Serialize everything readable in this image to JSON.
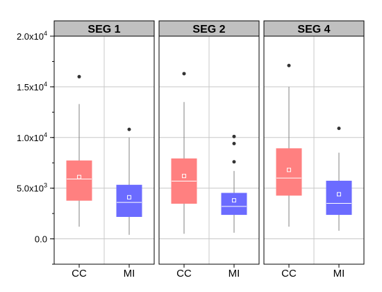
{
  "chart_data": {
    "type": "box",
    "ylim": [
      -2500,
      20000
    ],
    "y_ticks": [
      {
        "value": 0,
        "mantissa": "0.0",
        "exp": ""
      },
      {
        "value": 5000,
        "mantissa": "5.0x10",
        "exp": "3"
      },
      {
        "value": 10000,
        "mantissa": "1.0x10",
        "exp": "4"
      },
      {
        "value": 15000,
        "mantissa": "1.5x10",
        "exp": "4"
      },
      {
        "value": 20000,
        "mantissa": "2.0x10",
        "exp": "4"
      }
    ],
    "grid": true,
    "categories": [
      "CC",
      "MI"
    ],
    "colors": {
      "CC": "#ff8080",
      "MI": "#6b6bff",
      "median": "#ffffff",
      "whisker": "#808080",
      "header_bg": "#c0c0c0",
      "grid": "#c8c8c8",
      "outlier": "#333333"
    },
    "panels": [
      {
        "title": "SEG 1",
        "boxes": [
          {
            "category": "CC",
            "whisker_low": 1200,
            "q1": 3800,
            "median": 5900,
            "mean": 6100,
            "q3": 7700,
            "whisker_high": 13300,
            "outliers": [
              16000
            ]
          },
          {
            "category": "MI",
            "whisker_low": 400,
            "q1": 2200,
            "median": 3600,
            "mean": 4100,
            "q3": 5300,
            "whisker_high": 10000,
            "outliers": [
              10800
            ]
          }
        ]
      },
      {
        "title": "SEG 2",
        "boxes": [
          {
            "category": "CC",
            "whisker_low": 500,
            "q1": 3500,
            "median": 5700,
            "mean": 6200,
            "q3": 7900,
            "whisker_high": 13500,
            "outliers": [
              16300
            ]
          },
          {
            "category": "MI",
            "whisker_low": 600,
            "q1": 2400,
            "median": 3200,
            "mean": 3800,
            "q3": 4500,
            "whisker_high": 6700,
            "outliers": [
              7600,
              9400,
              10100
            ]
          }
        ]
      },
      {
        "title": "SEG 4",
        "boxes": [
          {
            "category": "CC",
            "whisker_low": 1200,
            "q1": 4300,
            "median": 6000,
            "mean": 6800,
            "q3": 8900,
            "whisker_high": 15000,
            "outliers": [
              17100
            ]
          },
          {
            "category": "MI",
            "whisker_low": 800,
            "q1": 2400,
            "median": 3500,
            "mean": 4400,
            "q3": 5700,
            "whisker_high": 8500,
            "outliers": [
              10900
            ]
          }
        ]
      }
    ]
  }
}
